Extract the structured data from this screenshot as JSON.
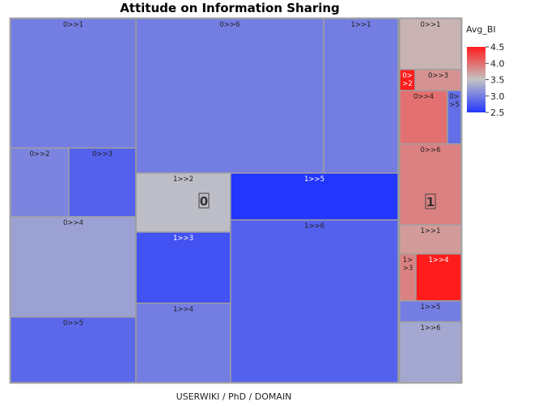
{
  "chart_data": {
    "type": "treemap",
    "title": "Attitude on Information Sharing",
    "xlabel": "USERWIKI / PhD / DOMAIN",
    "color_legend": {
      "title": "Avg_BI",
      "min": 2.5,
      "max": 4.5,
      "ticks": [
        "4.5",
        "4.0",
        "3.5",
        "3.0",
        "2.5"
      ],
      "low_color": "#2336ff",
      "mid_color": "#c4c4c4",
      "high_color": "#ff1c1c"
    },
    "groups": [
      {
        "label": "0",
        "subgroups": [
          {
            "label": "0",
            "cells": [
              {
                "label": "0>>1",
                "value": 3.0
              },
              {
                "label": "0>>2",
                "value": 3.05
              },
              {
                "label": "0>>3",
                "value": 2.8
              },
              {
                "label": "0>>4",
                "value": 3.25
              },
              {
                "label": "0>>5",
                "value": 2.85
              }
            ]
          },
          {
            "label": "0",
            "cells": [
              {
                "label": "0>>6",
                "value": 3.0
              },
              {
                "label": "1>>1",
                "value": 3.0
              },
              {
                "label": "1>>2",
                "value": 3.45
              },
              {
                "label": "1>>3",
                "value": 2.7
              },
              {
                "label": "1>>4",
                "value": 3.0
              },
              {
                "label": "1>>5",
                "value": 2.5
              },
              {
                "label": "1>>6",
                "value": 2.8
              }
            ]
          }
        ]
      },
      {
        "label": "1",
        "cells": [
          {
            "label": "0>>1",
            "value": 3.6
          },
          {
            "label": "0>>2",
            "value": 4.5
          },
          {
            "label": "0>>3",
            "value": 3.8
          },
          {
            "label": "0>>4",
            "value": 4.0
          },
          {
            "label": "0>>5",
            "value": 2.9
          },
          {
            "label": "0>>6",
            "value": 3.9
          },
          {
            "label": "1>>1",
            "value": 3.75
          },
          {
            "label": "1>>3",
            "value": 3.9
          },
          {
            "label": "1>>4",
            "value": 4.5
          },
          {
            "label": "1>>5",
            "value": 3.0
          },
          {
            "label": "1>>6",
            "value": 3.3
          }
        ]
      }
    ]
  }
}
